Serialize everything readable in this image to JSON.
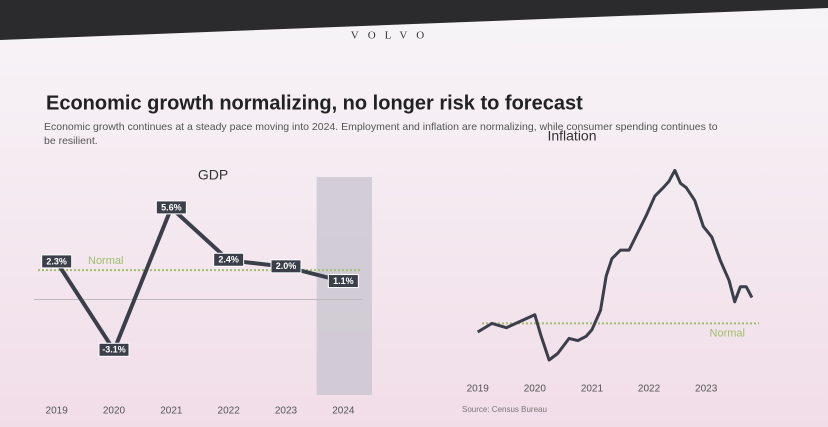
{
  "brand": "VOLVO",
  "title": "Economic growth normalizing, no longer risk to forecast",
  "subtitle": "Economic growth continues at a steady pace moving into 2024. Employment and inflation are normalizing, while consumer spending continues to be resilient.",
  "chart_data": [
    {
      "type": "line",
      "title": "GDP",
      "categories": [
        "2019",
        "2020",
        "2021",
        "2022",
        "2023",
        "2024"
      ],
      "values": [
        2.3,
        -3.1,
        5.6,
        2.4,
        2.0,
        1.1
      ],
      "value_labels": [
        "2.3%",
        "-3.1%",
        "5.6%",
        "2.4%",
        "2.0%",
        "1.1%"
      ],
      "color": "#3a3f4a",
      "ylim": [
        -4,
        7
      ],
      "reference_line": {
        "value": 1.8,
        "label": "Normal",
        "color": "#9fbf6a"
      },
      "highlight_index": 5
    },
    {
      "type": "line",
      "title": "Inflation",
      "x": [
        2019.0,
        2019.25,
        2019.5,
        2019.75,
        2020.0,
        2020.1,
        2020.25,
        2020.4,
        2020.6,
        2020.75,
        2020.9,
        2021.0,
        2021.15,
        2021.25,
        2021.35,
        2021.5,
        2021.65,
        2021.8,
        2021.95,
        2022.1,
        2022.25,
        2022.35,
        2022.45,
        2022.55,
        2022.65,
        2022.8,
        2022.95,
        2023.1,
        2023.25,
        2023.4,
        2023.5,
        2023.6,
        2023.7,
        2023.8
      ],
      "values": [
        1.6,
        2.0,
        1.8,
        2.1,
        2.4,
        1.5,
        0.3,
        0.6,
        1.3,
        1.2,
        1.4,
        1.7,
        2.6,
        4.2,
        5.0,
        5.4,
        5.4,
        6.2,
        7.0,
        7.9,
        8.3,
        8.6,
        9.1,
        8.5,
        8.3,
        7.7,
        6.5,
        6.0,
        4.9,
        4.0,
        3.0,
        3.7,
        3.7,
        3.2
      ],
      "color": "#3a3f4a",
      "xlim": [
        2018.9,
        2024.1
      ],
      "xticks": [
        2019,
        2020,
        2021,
        2022,
        2023
      ],
      "ylim": [
        -1,
        10
      ],
      "reference_line": {
        "value": 2.0,
        "label": "Normal",
        "color": "#9fbf6a"
      },
      "source": "Source: Census Bureau"
    }
  ]
}
